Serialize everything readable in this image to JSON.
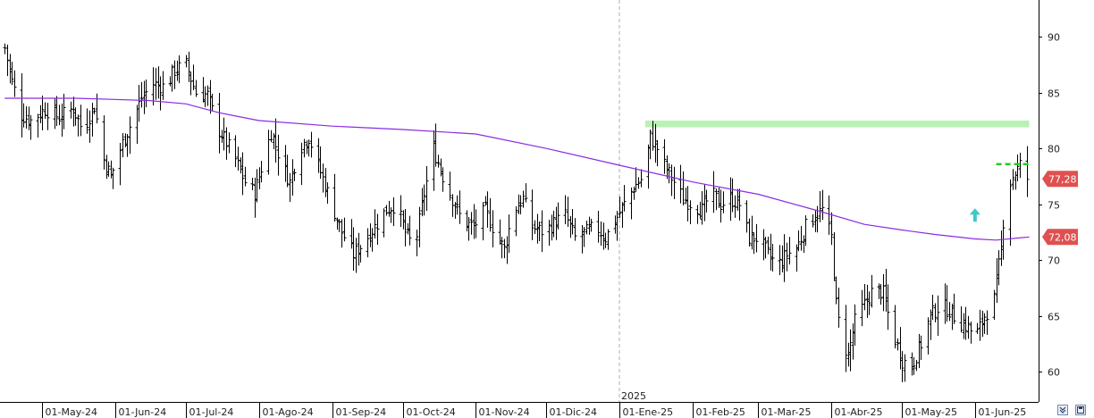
{
  "chart_data": {
    "type": "ohlc",
    "y_ticks": [
      60,
      65,
      70,
      75,
      80,
      85,
      90
    ],
    "ylim": [
      57.3,
      93.3
    ],
    "x_ticks": [
      {
        "date": "2024-05-01",
        "label": "01-May-24"
      },
      {
        "date": "2024-06-01",
        "label": "01-Jun-24"
      },
      {
        "date": "2024-07-01",
        "label": "01-Jul-24"
      },
      {
        "date": "2024-08-01",
        "label": "01-Ago-24"
      },
      {
        "date": "2024-09-01",
        "label": "01-Sep-24"
      },
      {
        "date": "2024-10-01",
        "label": "01-Oct-24"
      },
      {
        "date": "2024-11-01",
        "label": "01-Nov-24"
      },
      {
        "date": "2024-12-01",
        "label": "01-Dic-24"
      },
      {
        "date": "2025-01-01",
        "label": "01-Ene-25"
      },
      {
        "date": "2025-02-01",
        "label": "01-Feb-25"
      },
      {
        "date": "2025-03-01",
        "label": "01-Mar-25"
      },
      {
        "date": "2025-04-01",
        "label": "01-Abr-25"
      },
      {
        "date": "2025-05-01",
        "label": "01-May-25"
      },
      {
        "date": "2025-06-01",
        "label": "01-Jun-25"
      }
    ],
    "xlim": [
      "2024-04-13",
      "2025-06-28"
    ],
    "year_separator": {
      "date": "2025-01-01",
      "label": "2025"
    },
    "price_path": [
      [
        "2024-04-15",
        89.0
      ],
      [
        "2024-04-18",
        86.0
      ],
      [
        "2024-04-22",
        83.0
      ],
      [
        "2024-04-26",
        82.5
      ],
      [
        "2024-05-02",
        83.5
      ],
      [
        "2024-05-08",
        82.8
      ],
      [
        "2024-05-14",
        83.6
      ],
      [
        "2024-05-18",
        81.5
      ],
      [
        "2024-05-23",
        83.8
      ],
      [
        "2024-05-27",
        79.0
      ],
      [
        "2024-05-30",
        77.5
      ],
      [
        "2024-06-04",
        80.5
      ],
      [
        "2024-06-08",
        82.5
      ],
      [
        "2024-06-12",
        84.5
      ],
      [
        "2024-06-17",
        85.8
      ],
      [
        "2024-06-22",
        85.5
      ],
      [
        "2024-06-26",
        87.0
      ],
      [
        "2024-07-01",
        87.5
      ],
      [
        "2024-07-05",
        85.0
      ],
      [
        "2024-07-10",
        84.8
      ],
      [
        "2024-07-14",
        82.0
      ],
      [
        "2024-07-18",
        80.5
      ],
      [
        "2024-07-22",
        79.0
      ],
      [
        "2024-07-26",
        77.0
      ],
      [
        "2024-07-30",
        76.0
      ],
      [
        "2024-08-03",
        79.0
      ],
      [
        "2024-08-06",
        81.5
      ],
      [
        "2024-08-10",
        79.0
      ],
      [
        "2024-08-14",
        77.0
      ],
      [
        "2024-08-18",
        80.0
      ],
      [
        "2024-08-22",
        81.0
      ],
      [
        "2024-08-26",
        78.5
      ],
      [
        "2024-08-31",
        75.5
      ],
      [
        "2024-09-05",
        72.5
      ],
      [
        "2024-09-10",
        70.5
      ],
      [
        "2024-09-14",
        71.5
      ],
      [
        "2024-09-19",
        73.0
      ],
      [
        "2024-09-24",
        74.5
      ],
      [
        "2024-09-28",
        75.0
      ],
      [
        "2024-10-02",
        72.5
      ],
      [
        "2024-10-06",
        71.0
      ],
      [
        "2024-10-10",
        76.0
      ],
      [
        "2024-10-14",
        80.0
      ],
      [
        "2024-10-18",
        77.5
      ],
      [
        "2024-10-22",
        75.5
      ],
      [
        "2024-10-26",
        73.5
      ],
      [
        "2024-10-31",
        73.0
      ],
      [
        "2024-11-05",
        74.5
      ],
      [
        "2024-11-09",
        72.5
      ],
      [
        "2024-11-13",
        71.0
      ],
      [
        "2024-11-17",
        74.5
      ],
      [
        "2024-11-21",
        75.5
      ],
      [
        "2024-11-25",
        73.0
      ],
      [
        "2024-11-30",
        72.5
      ],
      [
        "2024-12-05",
        73.5
      ],
      [
        "2024-12-09",
        74.0
      ],
      [
        "2024-12-13",
        72.0
      ],
      [
        "2024-12-18",
        72.5
      ],
      [
        "2024-12-22",
        73.0
      ],
      [
        "2024-12-26",
        72.0
      ],
      [
        "2024-12-30",
        73.5
      ],
      [
        "2025-01-03",
        75.0
      ],
      [
        "2025-01-07",
        76.5
      ],
      [
        "2025-01-11",
        77.5
      ],
      [
        "2025-01-14",
        81.0
      ],
      [
        "2025-01-17",
        80.0
      ],
      [
        "2025-01-20",
        78.5
      ],
      [
        "2025-01-24",
        77.0
      ],
      [
        "2025-01-28",
        75.5
      ],
      [
        "2025-02-01",
        75.0
      ],
      [
        "2025-02-05",
        74.5
      ],
      [
        "2025-02-09",
        76.0
      ],
      [
        "2025-02-13",
        75.0
      ],
      [
        "2025-02-17",
        75.5
      ],
      [
        "2025-02-21",
        75.0
      ],
      [
        "2025-02-25",
        72.0
      ],
      [
        "2025-03-01",
        72.0
      ],
      [
        "2025-03-05",
        70.5
      ],
      [
        "2025-03-09",
        69.5
      ],
      [
        "2025-03-13",
        70.5
      ],
      [
        "2025-03-17",
        71.0
      ],
      [
        "2025-03-21",
        73.0
      ],
      [
        "2025-03-25",
        74.0
      ],
      [
        "2025-03-28",
        74.5
      ],
      [
        "2025-04-01",
        72.0
      ],
      [
        "2025-04-03",
        66.0
      ],
      [
        "2025-04-05",
        63.0
      ],
      [
        "2025-04-08",
        61.5
      ],
      [
        "2025-04-11",
        64.5
      ],
      [
        "2025-04-15",
        66.0
      ],
      [
        "2025-04-19",
        67.5
      ],
      [
        "2025-04-23",
        67.0
      ],
      [
        "2025-04-27",
        63.5
      ],
      [
        "2025-05-01",
        61.0
      ],
      [
        "2025-05-05",
        60.5
      ],
      [
        "2025-05-09",
        62.5
      ],
      [
        "2025-05-13",
        65.0
      ],
      [
        "2025-05-17",
        66.0
      ],
      [
        "2025-05-21",
        65.5
      ],
      [
        "2025-05-25",
        64.5
      ],
      [
        "2025-05-29",
        64.0
      ],
      [
        "2025-06-01",
        63.0
      ],
      [
        "2025-06-05",
        65.0
      ],
      [
        "2025-06-09",
        66.5
      ],
      [
        "2025-06-12",
        71.0
      ],
      [
        "2025-06-14",
        76.0
      ],
      [
        "2025-06-17",
        77.5
      ],
      [
        "2025-06-20",
        78.5
      ],
      [
        "2025-06-23",
        77.3
      ]
    ],
    "moving_average": {
      "color": "#8a2be2",
      "points": [
        [
          "2024-04-15",
          84.5
        ],
        [
          "2024-05-15",
          84.5
        ],
        [
          "2024-06-15",
          84.3
        ],
        [
          "2024-07-01",
          84.0
        ],
        [
          "2024-07-15",
          83.2
        ],
        [
          "2024-08-01",
          82.5
        ],
        [
          "2024-09-01",
          82.0
        ],
        [
          "2024-10-01",
          81.7
        ],
        [
          "2024-11-01",
          81.3
        ],
        [
          "2024-12-01",
          80.0
        ],
        [
          "2025-01-01",
          78.5
        ],
        [
          "2025-02-01",
          77.0
        ],
        [
          "2025-03-01",
          75.9
        ],
        [
          "2025-03-25",
          74.5
        ],
        [
          "2025-04-15",
          73.2
        ],
        [
          "2025-05-01",
          72.7
        ],
        [
          "2025-05-15",
          72.3
        ],
        [
          "2025-06-01",
          71.9
        ],
        [
          "2025-06-10",
          71.8
        ],
        [
          "2025-06-24",
          72.08
        ]
      ]
    },
    "resistance_band": {
      "from": "2025-01-12",
      "to": "2025-06-24",
      "y_low": 81.9,
      "y_high": 82.5,
      "color": "#b9f2b3"
    },
    "dashed_level": {
      "from": "2025-06-10",
      "to": "2025-06-24",
      "y": 78.6,
      "color": "#22cc22"
    },
    "arrow_up": {
      "date": "2025-06-01",
      "y": 74.0,
      "color": "#3cc8c8"
    },
    "price_labels": [
      {
        "value": "77,28",
        "y": 77.28,
        "color": "#e05050"
      },
      {
        "value": "72,08",
        "y": 72.08,
        "color": "#e05050"
      }
    ],
    "bar_color": "#000000",
    "grid": false
  }
}
